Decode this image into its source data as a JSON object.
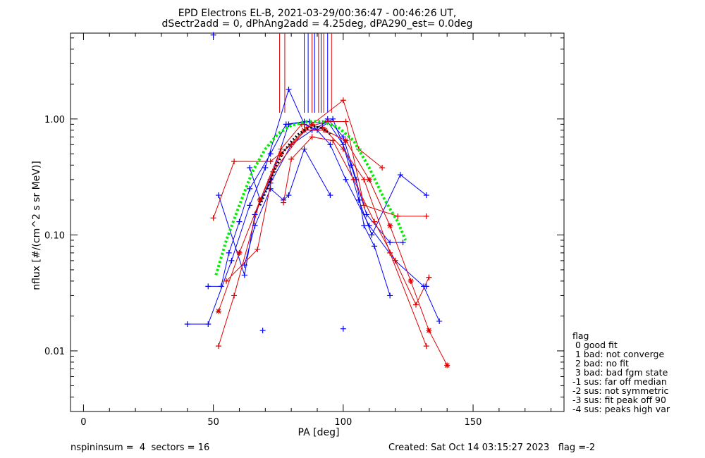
{
  "chart_data": {
    "type": "scatter",
    "title": "EPD Electrons EL-B, 2021-03-29/00:36:47 - 00:46:26 UT,",
    "subtitle": "dSectr2add = 0, dPhAng2add = 4.25deg, dPA290_est=   0.0deg",
    "xlabel": "PA [deg]",
    "ylabel": "nflux [#/(cm^2 s sr MeV)]",
    "xlim": [
      -5,
      185
    ],
    "ylim": [
      0.003,
      5.5
    ],
    "yscale": "log",
    "x_ticks": [
      "0",
      "50",
      "100",
      "150"
    ],
    "y_ticks": [
      "0.01",
      "0.10",
      "1.00"
    ],
    "grid": false,
    "colors": {
      "blue": "#0000ff",
      "red": "#dd0000",
      "green": "#00ee00",
      "black": "#000000"
    },
    "series": [
      {
        "color": "blue",
        "marker": "plus",
        "points": [
          [
            48,
            0.036
          ],
          [
            53,
            0.036
          ],
          [
            56,
            0.07
          ],
          [
            60,
            0.13
          ],
          [
            64,
            0.25
          ],
          [
            72,
            0.5
          ],
          [
            78,
            0.9
          ],
          [
            85,
            0.95
          ],
          [
            92,
            0.92
          ],
          [
            94,
            1.0
          ],
          [
            100,
            0.7
          ],
          [
            105,
            0.3
          ],
          [
            108,
            0.12
          ],
          [
            112,
            0.08
          ],
          [
            118,
            0.03
          ]
        ]
      },
      {
        "color": "blue",
        "marker": "plus",
        "points": [
          [
            40,
            0.017
          ],
          [
            48,
            0.017
          ],
          [
            57,
            0.06
          ],
          [
            64,
            0.18
          ],
          [
            70,
            0.38
          ],
          [
            79,
            1.8
          ],
          [
            85,
            0.9
          ],
          [
            90,
            0.8
          ],
          [
            96,
            1.0
          ],
          [
            103,
            0.4
          ],
          [
            109,
            0.15
          ],
          [
            118,
            0.086
          ],
          [
            123,
            0.086
          ]
        ]
      },
      {
        "color": "blue",
        "marker": "plus",
        "points": [
          [
            52,
            0.22
          ],
          [
            62,
            0.045
          ],
          [
            66,
            0.15
          ],
          [
            72,
            0.3
          ],
          [
            79,
            0.9
          ],
          [
            87,
            0.95
          ],
          [
            95,
            0.6
          ],
          [
            101,
            0.3
          ],
          [
            110,
            0.12
          ],
          [
            120,
            0.06
          ],
          [
            131,
            0.036
          ],
          [
            137,
            0.018
          ]
        ]
      },
      {
        "color": "blue",
        "marker": "plus",
        "points": [
          [
            64,
            0.38
          ],
          [
            68,
            0.2
          ],
          [
            72,
            0.28
          ],
          [
            80,
            0.6
          ],
          [
            88,
            0.8
          ],
          [
            94,
            0.95
          ],
          [
            100,
            0.6
          ],
          [
            106,
            0.2
          ],
          [
            111,
            0.1
          ],
          [
            122,
            0.33
          ],
          [
            132,
            0.22
          ]
        ]
      },
      {
        "color": "blue",
        "marker": "plus",
        "points": [
          [
            62,
            0.055
          ],
          [
            66,
            0.12
          ],
          [
            72,
            0.25
          ],
          [
            77,
            0.2
          ],
          [
            79,
            0.22
          ],
          [
            85,
            0.55
          ],
          [
            95,
            0.22
          ]
        ]
      },
      {
        "color": "red",
        "marker": "plus",
        "points": [
          [
            50,
            0.14
          ],
          [
            58,
            0.43
          ],
          [
            72,
            0.43
          ],
          [
            80,
            0.6
          ],
          [
            88,
            0.9
          ],
          [
            100,
            1.45
          ],
          [
            106,
            0.55
          ],
          [
            115,
            0.38
          ]
        ]
      },
      {
        "color": "red",
        "marker": "plus",
        "points": [
          [
            52,
            0.011
          ],
          [
            58,
            0.03
          ],
          [
            68,
            0.2
          ],
          [
            76,
            0.55
          ],
          [
            84,
            0.9
          ],
          [
            92,
            0.85
          ],
          [
            100,
            0.55
          ],
          [
            108,
            0.3
          ],
          [
            118,
            0.07
          ],
          [
            132,
            0.011
          ]
        ]
      },
      {
        "color": "red",
        "marker": "plus",
        "points": [
          [
            55,
            0.04
          ],
          [
            67,
            0.075
          ],
          [
            73,
            0.35
          ],
          [
            86,
            0.85
          ],
          [
            94,
            0.95
          ],
          [
            101,
            0.95
          ],
          [
            108,
            0.18
          ],
          [
            121,
            0.145
          ],
          [
            132,
            0.145
          ]
        ]
      },
      {
        "color": "red",
        "marker": "star",
        "points": [
          [
            52,
            0.022
          ],
          [
            60,
            0.07
          ],
          [
            68,
            0.2
          ],
          [
            76,
            0.5
          ],
          [
            85,
            0.8
          ],
          [
            93,
            0.8
          ],
          [
            101,
            0.65
          ],
          [
            110,
            0.3
          ],
          [
            118,
            0.12
          ],
          [
            126,
            0.04
          ],
          [
            133,
            0.015
          ],
          [
            140,
            0.0075
          ]
        ]
      },
      {
        "color": "red",
        "marker": "plus",
        "points": [
          [
            77,
            0.19
          ],
          [
            80,
            0.45
          ],
          [
            88,
            0.7
          ],
          [
            96,
            0.65
          ],
          [
            104,
            0.3
          ],
          [
            112,
            0.13
          ],
          [
            120,
            0.06
          ],
          [
            128,
            0.025
          ],
          [
            133,
            0.043
          ]
        ]
      }
    ],
    "isolated_points": [
      [
        50,
        5.3,
        "blue"
      ],
      [
        69,
        0.015,
        "blue"
      ],
      [
        100,
        0.0155,
        "blue"
      ],
      [
        132,
        0.036,
        "blue"
      ],
      [
        133,
        0.043,
        "red"
      ]
    ],
    "spikes": [
      {
        "x": 75.5,
        "color": "red"
      },
      {
        "x": 77.5,
        "color": "red"
      },
      {
        "x": 85,
        "color": "blue"
      },
      {
        "x": 86.5,
        "color": "blue"
      },
      {
        "x": 88,
        "color": "red"
      },
      {
        "x": 89,
        "color": "blue"
      },
      {
        "x": 90.5,
        "color": "red"
      },
      {
        "x": 91.5,
        "color": "blue"
      },
      {
        "x": 92.5,
        "color": "red"
      },
      {
        "x": 94,
        "color": "blue"
      },
      {
        "x": 95.5,
        "color": "red"
      }
    ],
    "fit_green": [
      [
        51,
        0.045
      ],
      [
        55,
        0.09
      ],
      [
        60,
        0.18
      ],
      [
        65,
        0.35
      ],
      [
        70,
        0.55
      ],
      [
        75,
        0.75
      ],
      [
        80,
        0.88
      ],
      [
        86,
        0.95
      ],
      [
        92,
        0.95
      ],
      [
        98,
        0.85
      ],
      [
        104,
        0.65
      ],
      [
        110,
        0.38
      ],
      [
        116,
        0.2
      ],
      [
        121,
        0.13
      ],
      [
        124,
        0.09
      ]
    ],
    "fit_black": [
      [
        68,
        0.18
      ],
      [
        71,
        0.26
      ],
      [
        74,
        0.38
      ],
      [
        77,
        0.52
      ],
      [
        80,
        0.64
      ],
      [
        83,
        0.75
      ],
      [
        86,
        0.82
      ],
      [
        89,
        0.86
      ],
      [
        92,
        0.83
      ],
      [
        95,
        0.74
      ]
    ],
    "legend": {
      "title": "flag",
      "items": [
        " 0 good fit",
        " 1 bad: not converge",
        " 2 bad: no fit",
        " 3 bad: bad fgm state",
        "-1 sus: far off median",
        "-2 sus: not symmetric",
        "-3 sus: fit peak off 90",
        "-4 sus: peaks high var"
      ]
    }
  },
  "footer": {
    "left": "nspininsum =  4  sectors = 16",
    "right": "Created: Sat Oct 14 03:15:27 2023   flag =-2"
  }
}
